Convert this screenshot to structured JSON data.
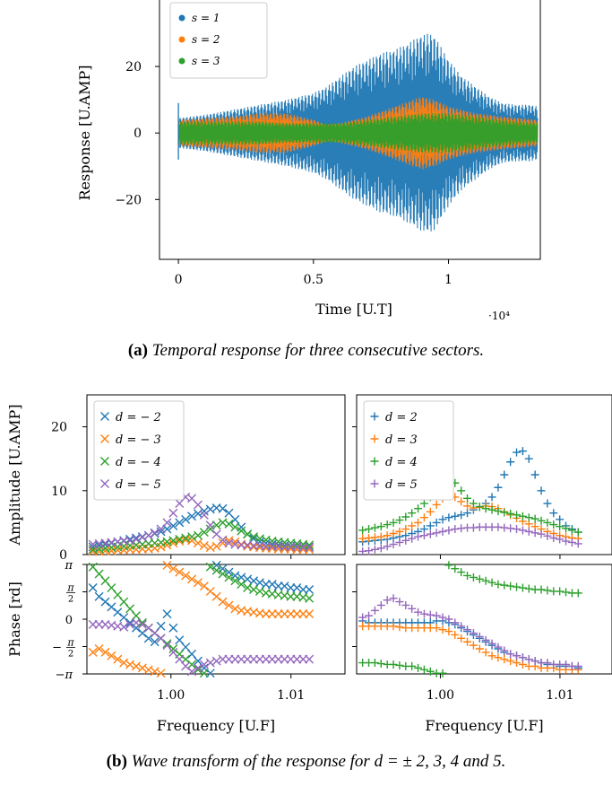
{
  "colors": {
    "blue": "#1f77b4",
    "orange": "#ff7f0e",
    "green": "#2ca02c",
    "purple": "#9467bd"
  },
  "captions": {
    "a_label": "(a)",
    "a_text": "Temporal response for three consecutive sectors.",
    "b_label": "(b)",
    "b_text": "Wave transform of the response for d = ± 2, 3, 4 and 5."
  },
  "chart_data": [
    {
      "type": "line",
      "title": "",
      "xlabel": "Time [U.T]",
      "ylabel": "Response [U.AMP]",
      "x_multiplier": "·10⁴",
      "xlim": [
        -0.07,
        1.34
      ],
      "ylim": [
        -38,
        40
      ],
      "xticks": [
        0,
        0.5,
        1
      ],
      "xticklabels": [
        "0",
        "0.5",
        "1"
      ],
      "yticks": [
        -20,
        0,
        20
      ],
      "yticklabels": [
        "−20",
        "0",
        "20"
      ],
      "legend_position": "top-left",
      "series": [
        {
          "name": "s = 1",
          "color": "#1f77b4",
          "envelope_x": [
            0,
            0.05,
            0.1,
            0.2,
            0.3,
            0.4,
            0.5,
            0.55,
            0.6,
            0.65,
            0.7,
            0.75,
            0.8,
            0.85,
            0.9,
            0.93,
            0.95,
            1.0,
            1.05,
            1.1,
            1.15,
            1.2,
            1.25,
            1.3,
            1.33
          ],
          "envelope_amplitude": [
            4.5,
            5,
            5.5,
            7,
            8.5,
            10,
            12,
            14,
            17,
            20,
            22,
            24,
            25,
            27,
            29.5,
            30,
            29,
            22,
            17,
            14,
            11,
            9,
            8.5,
            8.5,
            8
          ]
        },
        {
          "name": "s = 2",
          "color": "#ff7f0e",
          "envelope_x": [
            0,
            0.1,
            0.2,
            0.3,
            0.4,
            0.5,
            0.55,
            0.6,
            0.7,
            0.8,
            0.85,
            0.9,
            0.95,
            1.0,
            1.1,
            1.2,
            1.33
          ],
          "envelope_amplitude": [
            4,
            4.5,
            5,
            6,
            6,
            4,
            2.5,
            3,
            5,
            8,
            9.5,
            11,
            10,
            8,
            6,
            5,
            4
          ]
        },
        {
          "name": "s = 3",
          "color": "#2ca02c",
          "envelope_x": [
            0,
            0.1,
            0.2,
            0.3,
            0.4,
            0.5,
            0.6,
            0.7,
            0.8,
            0.9,
            1.0,
            1.1,
            1.2,
            1.33
          ],
          "envelope_amplitude": [
            3.5,
            3.5,
            3.5,
            3.5,
            3,
            3,
            3,
            4,
            5,
            6,
            6,
            5,
            4,
            3
          ]
        }
      ]
    },
    {
      "type": "scatter",
      "title": "",
      "ylabel": "Amplitude [U.AMP]",
      "xlabel": "Frequency [U.F]",
      "xlim": [
        0.993,
        1.0145
      ],
      "ylim": [
        0,
        25
      ],
      "yticks": [
        0,
        10,
        20
      ],
      "yticklabels": [
        "0",
        "10",
        "20"
      ],
      "legend_position": "top-left",
      "marker": "x",
      "series": [
        {
          "name": "d = − 2",
          "color": "#1f77b4",
          "x_start": 0.9935,
          "x_step": 0.000515,
          "y": [
            1.2,
            1.4,
            1.6,
            1.8,
            2.0,
            2.2,
            2.4,
            2.6,
            2.8,
            3.0,
            3.3,
            3.6,
            4.0,
            4.5,
            5.0,
            5.5,
            6.0,
            6.4,
            6.8,
            7.1,
            7.3,
            7.2,
            6.5,
            5.5,
            4.3,
            3.2,
            2.5,
            2.0,
            1.8,
            1.6,
            1.5,
            1.4,
            1.3,
            1.3,
            1.2,
            1.2
          ]
        },
        {
          "name": "d = − 3",
          "color": "#ff7f0e",
          "x_start": 0.9935,
          "x_step": 0.000515,
          "y": [
            0.5,
            0.5,
            0.6,
            0.6,
            0.7,
            0.7,
            0.8,
            0.8,
            0.9,
            0.9,
            1.0,
            1.2,
            1.5,
            1.8,
            2.1,
            2.3,
            2.2,
            1.8,
            1.4,
            1.1,
            1.3,
            1.8,
            2.2,
            2.0,
            1.6,
            1.3,
            1.2,
            1.1,
            1.0,
            1.0,
            0.9,
            0.9,
            0.9,
            0.8,
            0.8,
            0.8
          ]
        },
        {
          "name": "d = − 4",
          "color": "#2ca02c",
          "x_start": 0.9935,
          "x_step": 0.000515,
          "y": [
            0.8,
            0.9,
            1.0,
            1.1,
            1.2,
            1.3,
            1.4,
            1.5,
            1.6,
            1.7,
            1.8,
            1.9,
            2.0,
            2.2,
            2.4,
            2.6,
            2.8,
            3.0,
            3.5,
            4.0,
            4.6,
            5.0,
            4.8,
            4.3,
            3.7,
            3.2,
            2.8,
            2.5,
            2.3,
            2.1,
            2.0,
            1.9,
            1.8,
            1.7,
            1.6,
            1.5
          ]
        },
        {
          "name": "d = − 5",
          "color": "#9467bd",
          "x_start": 0.9935,
          "x_step": 0.000515,
          "y": [
            1.6,
            1.7,
            1.8,
            1.9,
            2.0,
            2.1,
            2.2,
            2.4,
            2.7,
            3.0,
            3.4,
            4.0,
            5.0,
            6.5,
            8.0,
            9.0,
            8.8,
            7.8,
            6.2,
            4.6,
            3.2,
            2.3,
            1.8,
            1.6,
            1.5,
            1.5,
            1.4,
            1.4,
            1.3,
            1.3,
            1.3,
            1.2,
            1.2,
            1.2,
            1.1,
            1.1
          ]
        }
      ]
    },
    {
      "type": "scatter",
      "title": "",
      "xlabel": "Frequency [U.F]",
      "xlim": [
        0.993,
        1.0145
      ],
      "ylim": [
        0,
        25
      ],
      "yticks": [
        0,
        10,
        20
      ],
      "legend_position": "top-left",
      "marker": "+",
      "series": [
        {
          "name": "d = 2",
          "color": "#1f77b4",
          "x_start": 0.9935,
          "x_step": 0.000515,
          "y": [
            2.0,
            2.1,
            2.2,
            2.3,
            2.4,
            2.6,
            2.8,
            3.0,
            3.3,
            3.6,
            4.0,
            4.5,
            5.0,
            5.5,
            5.8,
            6.0,
            6.2,
            6.5,
            7.0,
            7.5,
            8.0,
            9.0,
            10.5,
            12.5,
            14.5,
            16.0,
            16.2,
            15.0,
            12.5,
            10.0,
            8.0,
            6.5,
            5.5,
            4.5,
            4.0,
            3.5
          ]
        },
        {
          "name": "d = 3",
          "color": "#ff7f0e",
          "x_start": 0.9935,
          "x_step": 0.000515,
          "y": [
            2.5,
            2.6,
            2.7,
            2.8,
            3.0,
            3.3,
            3.6,
            4.0,
            4.5,
            5.0,
            5.8,
            6.7,
            7.8,
            8.8,
            9.3,
            9.0,
            8.3,
            7.6,
            7.3,
            7.4,
            7.6,
            7.5,
            7.2,
            6.7,
            6.2,
            5.7,
            5.2,
            4.8,
            4.4,
            4.0,
            3.6,
            3.3,
            3.0,
            2.8,
            2.6,
            2.5
          ]
        },
        {
          "name": "d = 4",
          "color": "#2ca02c",
          "x_start": 0.9935,
          "x_step": 0.000515,
          "y": [
            3.8,
            4.0,
            4.2,
            4.4,
            4.7,
            5.0,
            5.4,
            5.9,
            6.5,
            7.2,
            8.0,
            9.0,
            10.0,
            11.0,
            11.5,
            11.2,
            10.0,
            8.8,
            8.0,
            7.5,
            7.2,
            7.0,
            6.8,
            6.6,
            6.4,
            6.2,
            6.0,
            5.8,
            5.6,
            5.3,
            5.0,
            4.7,
            4.4,
            4.1,
            3.8,
            3.5
          ]
        },
        {
          "name": "d = 5",
          "color": "#9467bd",
          "x_start": 0.9935,
          "x_step": 0.000515,
          "y": [
            0.5,
            0.6,
            0.8,
            1.0,
            1.3,
            1.6,
            1.9,
            2.2,
            2.5,
            2.8,
            3.0,
            3.2,
            3.4,
            3.6,
            3.8,
            4.0,
            4.1,
            4.2,
            4.2,
            4.3,
            4.3,
            4.3,
            4.3,
            4.2,
            4.1,
            4.0,
            3.8,
            3.6,
            3.4,
            3.2,
            2.9,
            2.6,
            2.4,
            2.1,
            1.9,
            1.7
          ]
        }
      ]
    },
    {
      "type": "scatter",
      "title": "",
      "ylabel": "Phase [rd]",
      "xlabel": "Frequency [U.F]",
      "xlim": [
        0.993,
        1.0145
      ],
      "ylim": [
        -3.1416,
        3.1416
      ],
      "yticklabels": [
        "π",
        "π/2",
        "0",
        "−π/2",
        "−π"
      ],
      "xticks": [
        1.0,
        1.01
      ],
      "xticklabels": [
        "1.00",
        "1.01"
      ],
      "marker": "x",
      "series": [
        {
          "name": "d = − 2",
          "color": "#1f77b4",
          "x_start": 0.9935,
          "x_step": 0.000515,
          "y": [
            1.8,
            1.3,
            1.0,
            0.7,
            0.4,
            0.1,
            -0.2,
            -0.5,
            -0.8,
            -1.1,
            -1.3,
            -0.4,
            0.3,
            -0.5,
            -1.2,
            -1.6,
            -2.0,
            -2.4,
            -2.8,
            -3.1,
            3.1,
            2.9,
            2.7,
            2.5,
            2.4,
            2.3,
            2.2,
            2.1,
            2.0,
            2.0,
            1.9,
            1.9,
            1.8,
            1.8,
            1.7,
            1.7
          ]
        },
        {
          "name": "d = − 3",
          "color": "#ff7f0e",
          "x_start": 0.9935,
          "x_step": 0.000515,
          "y": [
            -1.9,
            -1.7,
            -1.9,
            -2.1,
            -2.3,
            -2.5,
            -2.6,
            -2.7,
            -2.8,
            -2.9,
            -3.0,
            -3.1,
            3.1,
            2.9,
            2.7,
            2.5,
            2.3,
            2.1,
            1.9,
            1.6,
            1.3,
            1.0,
            0.8,
            0.6,
            0.5,
            0.45,
            0.4,
            0.35,
            0.3,
            0.3,
            0.3,
            0.3,
            0.3,
            0.3,
            0.3,
            0.3
          ]
        },
        {
          "name": "d = − 4",
          "color": "#2ca02c",
          "x_start": 0.9935,
          "x_step": 0.000515,
          "y": [
            3.0,
            2.6,
            2.2,
            1.8,
            1.4,
            1.0,
            0.6,
            0.2,
            -0.2,
            -0.5,
            -0.8,
            -1.1,
            -1.4,
            -1.7,
            -2.0,
            -2.3,
            -2.6,
            -2.9,
            -3.1,
            3.0,
            2.8,
            2.6,
            2.4,
            2.2,
            2.0,
            1.8,
            1.7,
            1.6,
            1.5,
            1.45,
            1.4,
            1.35,
            1.3,
            1.3,
            1.25,
            1.2
          ]
        },
        {
          "name": "d = − 5",
          "color": "#9467bd",
          "x_start": 0.9935,
          "x_step": 0.000515,
          "y": [
            -0.3,
            -0.3,
            -0.3,
            -0.35,
            -0.4,
            -0.45,
            -0.3,
            -0.2,
            -0.3,
            -0.5,
            -0.8,
            -1.1,
            -1.5,
            -1.9,
            -2.3,
            -2.7,
            -3.0,
            -2.8,
            -2.6,
            -2.5,
            -2.4,
            -2.3,
            -2.3,
            -2.3,
            -2.3,
            -2.3,
            -2.3,
            -2.3,
            -2.3,
            -2.3,
            -2.3,
            -2.3,
            -2.3,
            -2.3,
            -2.3,
            -2.3
          ]
        }
      ]
    },
    {
      "type": "scatter",
      "title": "",
      "xlabel": "Frequency [U.F]",
      "xlim": [
        0.993,
        1.0145
      ],
      "ylim": [
        -3.1416,
        3.1416
      ],
      "xticks": [
        1.0,
        1.01
      ],
      "xticklabels": [
        "1.00",
        "1.01"
      ],
      "marker": "+",
      "series": [
        {
          "name": "d = 2",
          "color": "#1f77b4",
          "x_start": 0.9935,
          "x_step": 0.000515,
          "y": [
            -0.1,
            -0.2,
            -0.2,
            -0.2,
            -0.2,
            -0.2,
            -0.2,
            -0.2,
            -0.2,
            -0.2,
            -0.2,
            -0.2,
            -0.1,
            -0.1,
            -0.2,
            -0.3,
            -0.5,
            -0.7,
            -0.9,
            -1.1,
            -1.3,
            -1.5,
            -1.7,
            -1.9,
            -2.0,
            -2.1,
            -2.2,
            -2.3,
            -2.4,
            -2.5,
            -2.6,
            -2.6,
            -2.7,
            -2.7,
            -2.7,
            -2.8
          ]
        },
        {
          "name": "d = 3",
          "color": "#ff7f0e",
          "x_start": 0.9935,
          "x_step": 0.000515,
          "y": [
            -0.4,
            -0.4,
            -0.4,
            -0.4,
            -0.4,
            -0.4,
            -0.45,
            -0.5,
            -0.5,
            -0.5,
            -0.5,
            -0.5,
            -0.5,
            -0.6,
            -0.7,
            -0.9,
            -1.1,
            -1.3,
            -1.5,
            -1.7,
            -1.9,
            -2.1,
            -2.2,
            -2.3,
            -2.4,
            -2.5,
            -2.6,
            -2.7,
            -2.7,
            -2.8,
            -2.8,
            -2.8,
            -2.9,
            -2.9,
            -2.9,
            -2.9
          ]
        },
        {
          "name": "d = 4",
          "color": "#2ca02c",
          "x_start": 0.9935,
          "x_step": 0.000515,
          "y": [
            -2.5,
            -2.5,
            -2.5,
            -2.55,
            -2.6,
            -2.6,
            -2.65,
            -2.7,
            -2.7,
            -2.8,
            -2.9,
            -3.0,
            -3.1,
            -3.1,
            3.1,
            2.9,
            2.7,
            2.5,
            2.4,
            2.3,
            2.2,
            2.1,
            2.0,
            1.95,
            1.9,
            1.85,
            1.8,
            1.75,
            1.7,
            1.7,
            1.65,
            1.6,
            1.6,
            1.55,
            1.5,
            1.5
          ]
        },
        {
          "name": "d = 5",
          "color": "#9467bd",
          "x_start": 0.9935,
          "x_step": 0.000515,
          "y": [
            0.1,
            0.2,
            0.5,
            0.8,
            1.1,
            1.2,
            1.0,
            0.8,
            0.6,
            0.4,
            0.3,
            0.25,
            0.2,
            0.1,
            0.0,
            -0.2,
            -0.4,
            -0.6,
            -0.8,
            -1.0,
            -1.2,
            -1.4,
            -1.6,
            -1.8,
            -2.0,
            -2.1,
            -2.2,
            -2.3,
            -2.4,
            -2.5,
            -2.5,
            -2.6,
            -2.6,
            -2.6,
            -2.7,
            -2.7
          ]
        }
      ]
    }
  ]
}
